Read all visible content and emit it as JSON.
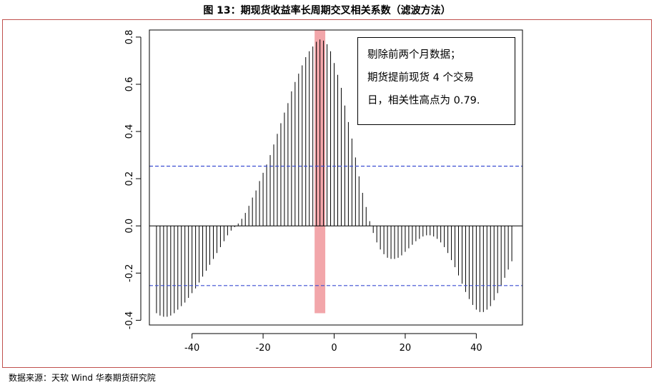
{
  "title": "图 13：期现货收益率长周期交叉相关系数（滤波方法）",
  "source": "数据来源：天软  Wind  华泰期货研究院",
  "annotation": {
    "lines": [
      "剔除前两个月数据；",
      "期货提前现货 4 个交易",
      "日，相关性高点为 0.79."
    ]
  },
  "colors": {
    "bars": "#000000",
    "confidence_lines": "#3b4fd1",
    "highlight": "#f2a6aa",
    "rule": "#c0504d"
  },
  "chart_data": {
    "type": "bar",
    "subtype": "stem (ccf plot)",
    "title": "",
    "xlabel": "",
    "ylabel": "",
    "xlim": [
      -52,
      53
    ],
    "ylim": [
      -0.42,
      0.83
    ],
    "x_ticks": [
      -40,
      -20,
      0,
      20,
      40
    ],
    "x_tick_labels": [
      "-40",
      "-20",
      "0",
      "20",
      "40"
    ],
    "y_ticks": [
      -0.4,
      -0.2,
      0.0,
      0.2,
      0.4,
      0.6,
      0.8
    ],
    "y_tick_labels": [
      "-0.4",
      "-0.2",
      "0.0",
      "0.2",
      "0.4",
      "0.6",
      "0.8"
    ],
    "confidence_bounds": [
      0.253,
      -0.253
    ],
    "highlight_lag": -4,
    "highlight_peak": 0.79,
    "highlight_range": [
      -5.5,
      -2.5
    ],
    "highlight_y_range": [
      -0.37,
      0.83
    ],
    "x": [
      -50,
      -49,
      -48,
      -47,
      -46,
      -45,
      -44,
      -43,
      -42,
      -41,
      -40,
      -39,
      -38,
      -37,
      -36,
      -35,
      -34,
      -33,
      -32,
      -31,
      -30,
      -29,
      -28,
      -27,
      -26,
      -25,
      -24,
      -23,
      -22,
      -21,
      -20,
      -19,
      -18,
      -17,
      -16,
      -15,
      -14,
      -13,
      -12,
      -11,
      -10,
      -9,
      -8,
      -7,
      -6,
      -5,
      -4,
      -3,
      -2,
      -1,
      0,
      1,
      2,
      3,
      4,
      5,
      6,
      7,
      8,
      9,
      10,
      11,
      12,
      13,
      14,
      15,
      16,
      17,
      18,
      19,
      20,
      21,
      22,
      23,
      24,
      25,
      26,
      27,
      28,
      29,
      30,
      31,
      32,
      33,
      34,
      35,
      36,
      37,
      38,
      39,
      40,
      41,
      42,
      43,
      44,
      45,
      46,
      47,
      48,
      49,
      50
    ],
    "values": [
      -0.37,
      -0.38,
      -0.385,
      -0.385,
      -0.38,
      -0.37,
      -0.355,
      -0.34,
      -0.325,
      -0.305,
      -0.285,
      -0.265,
      -0.24,
      -0.215,
      -0.19,
      -0.165,
      -0.14,
      -0.115,
      -0.09,
      -0.065,
      -0.04,
      -0.02,
      -0.005,
      0.01,
      0.03,
      0.055,
      0.085,
      0.12,
      0.15,
      0.19,
      0.225,
      0.26,
      0.3,
      0.345,
      0.39,
      0.435,
      0.48,
      0.52,
      0.57,
      0.61,
      0.645,
      0.68,
      0.715,
      0.74,
      0.76,
      0.78,
      0.79,
      0.785,
      0.77,
      0.74,
      0.69,
      0.64,
      0.585,
      0.51,
      0.44,
      0.37,
      0.29,
      0.21,
      0.14,
      0.08,
      0.02,
      -0.03,
      -0.07,
      -0.1,
      -0.12,
      -0.135,
      -0.14,
      -0.14,
      -0.135,
      -0.125,
      -0.11,
      -0.095,
      -0.08,
      -0.065,
      -0.055,
      -0.045,
      -0.04,
      -0.04,
      -0.045,
      -0.055,
      -0.07,
      -0.09,
      -0.115,
      -0.145,
      -0.175,
      -0.21,
      -0.245,
      -0.28,
      -0.31,
      -0.335,
      -0.355,
      -0.365,
      -0.365,
      -0.355,
      -0.34,
      -0.315,
      -0.285,
      -0.255,
      -0.22,
      -0.185,
      -0.15
    ]
  }
}
